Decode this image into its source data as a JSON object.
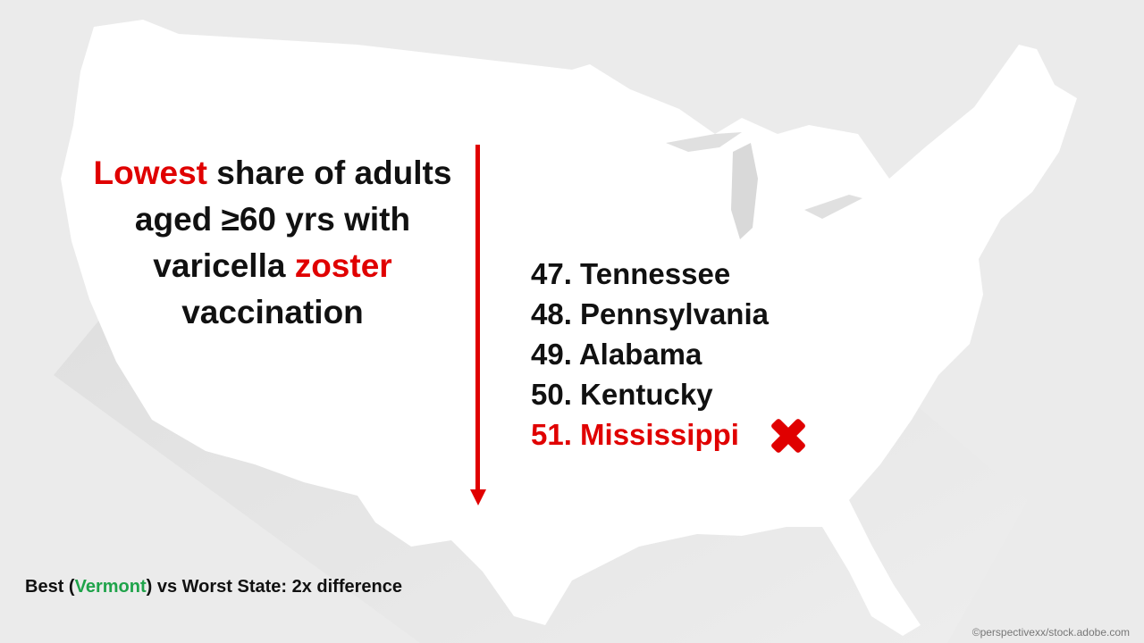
{
  "headline": {
    "part1_red": "Lowest",
    "part2": " share of adults aged ≥60 yrs with varicella ",
    "part3_red": "zoster",
    "part4": " vaccination"
  },
  "ranking": [
    {
      "label": "47. Tennessee"
    },
    {
      "label": "48. Pennsylvania"
    },
    {
      "label": "49. Alabama"
    },
    {
      "label": "50. Kentucky"
    },
    {
      "label": "51. Mississippi"
    }
  ],
  "footnote": {
    "prefix": "Best (",
    "state": "Vermont",
    "suffix": ") vs Worst State: 2x difference"
  },
  "credit": "©perspectivexx/stock.adobe.com",
  "colors": {
    "accent_red": "#e00000",
    "accent_green": "#1fa34a",
    "text": "#111111",
    "map_fill": "#ffffff",
    "background": "#e9e9e9"
  },
  "icons": {
    "down_arrow": "down-arrow-icon",
    "x_mark": "x-mark-icon"
  }
}
